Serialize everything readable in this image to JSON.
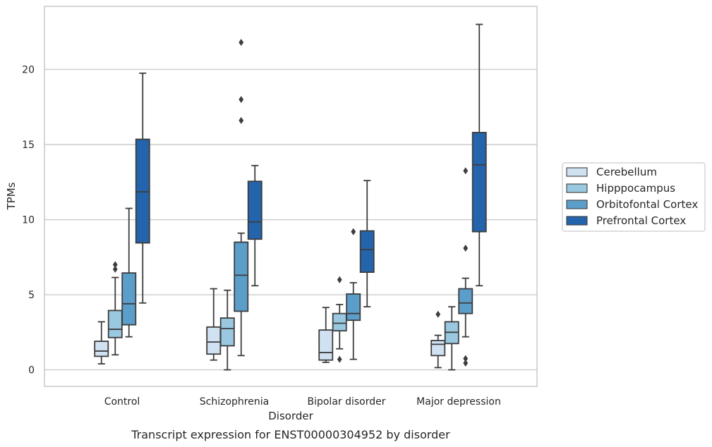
{
  "chart_data": {
    "type": "box",
    "caption": "Transcript expression for ENST00000304952 by disorder",
    "xlabel": "Disorder",
    "ylabel": "TPMs",
    "ylim": [
      -1.1,
      24.2
    ],
    "yticks": [
      0,
      5,
      10,
      15,
      20
    ],
    "grid": "horizontal",
    "legend_position": "right",
    "categories": [
      "Control",
      "Schizophrenia",
      "Bipolar disorder",
      "Major depression"
    ],
    "series": [
      {
        "name": "Cerebellum",
        "color": "#d0e1f2",
        "boxes": [
          {
            "whislo": 0.4,
            "q1": 0.9,
            "med": 1.25,
            "q3": 1.9,
            "whishi": 3.2,
            "fliers": []
          },
          {
            "whislo": 0.65,
            "q1": 1.05,
            "med": 1.85,
            "q3": 2.85,
            "whishi": 5.4,
            "fliers": []
          },
          {
            "whislo": 0.5,
            "q1": 0.65,
            "med": 1.15,
            "q3": 2.65,
            "whishi": 4.15,
            "fliers": []
          },
          {
            "whislo": 0.15,
            "q1": 0.95,
            "med": 1.7,
            "q3": 1.95,
            "whishi": 2.3,
            "fliers": [
              3.7
            ]
          }
        ]
      },
      {
        "name": "Hipppocampus",
        "color": "#9ac8e0",
        "boxes": [
          {
            "whislo": 1.0,
            "q1": 2.15,
            "med": 2.7,
            "q3": 3.95,
            "whishi": 6.15,
            "fliers": [
              6.7,
              7.0
            ]
          },
          {
            "whislo": 0.0,
            "q1": 1.6,
            "med": 2.75,
            "q3": 3.45,
            "whishi": 5.3,
            "fliers": []
          },
          {
            "whislo": 1.4,
            "q1": 2.6,
            "med": 3.1,
            "q3": 3.75,
            "whishi": 4.35,
            "fliers": [
              0.7,
              6.0
            ]
          },
          {
            "whislo": 0.0,
            "q1": 1.75,
            "med": 2.5,
            "q3": 3.2,
            "whishi": 4.2,
            "fliers": []
          }
        ]
      },
      {
        "name": "Orbitofontal Cortex",
        "color": "#5a9ec9",
        "boxes": [
          {
            "whislo": 2.2,
            "q1": 3.0,
            "med": 4.4,
            "q3": 6.45,
            "whishi": 10.75,
            "fliers": []
          },
          {
            "whislo": 0.95,
            "q1": 3.9,
            "med": 6.3,
            "q3": 8.5,
            "whishi": 9.1,
            "fliers": [
              16.6,
              18.0,
              21.8
            ]
          },
          {
            "whislo": 0.7,
            "q1": 3.3,
            "med": 3.75,
            "q3": 5.05,
            "whishi": 5.8,
            "fliers": [
              9.2
            ]
          },
          {
            "whislo": 2.2,
            "q1": 3.75,
            "med": 4.45,
            "q3": 5.4,
            "whishi": 6.1,
            "fliers": [
              0.45,
              0.75,
              8.1,
              13.25
            ]
          }
        ]
      },
      {
        "name": "Prefrontal Cortex",
        "color": "#2464ac",
        "boxes": [
          {
            "whislo": 4.45,
            "q1": 8.45,
            "med": 11.85,
            "q3": 15.35,
            "whishi": 19.75,
            "fliers": []
          },
          {
            "whislo": 5.6,
            "q1": 8.7,
            "med": 9.85,
            "q3": 12.55,
            "whishi": 13.6,
            "fliers": []
          },
          {
            "whislo": 4.2,
            "q1": 6.5,
            "med": 8.0,
            "q3": 9.25,
            "whishi": 12.6,
            "fliers": []
          },
          {
            "whislo": 5.6,
            "q1": 9.2,
            "med": 13.65,
            "q3": 15.8,
            "whishi": 23.0,
            "fliers": []
          }
        ]
      }
    ]
  }
}
